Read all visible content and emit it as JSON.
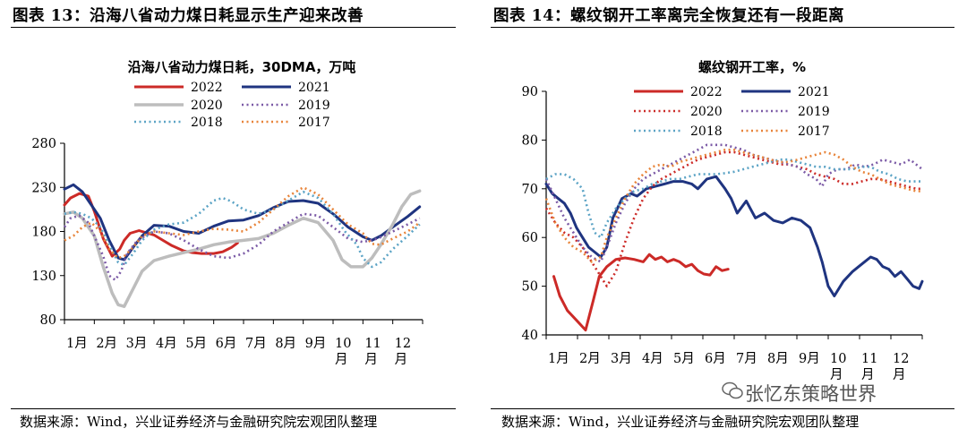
{
  "figure_left": {
    "label": "图表 13：沿海八省动力煤日耗显示生产迎来改善",
    "source": "数据来源：Wind，兴业证券经济与金融研究院宏观团队整理"
  },
  "figure_right": {
    "label": "图表 14：螺纹钢开工率离完全恢复还有一段距离",
    "source": "数据来源：Wind，兴业证券经济与金融研究院宏观团队整理"
  },
  "watermark": "张忆东策略世界",
  "chart_data": [
    {
      "type": "line",
      "title": "沿海八省动力煤日耗，30DMA，万吨",
      "x_ticks": [
        "1月",
        "2月",
        "3月",
        "4月",
        "5月",
        "6月",
        "7月",
        "8月",
        "9月",
        "10\n月",
        "11\n月",
        "12\n月"
      ],
      "ylim": [
        80,
        280
      ],
      "y_ticks": [
        80,
        130,
        180,
        230,
        280
      ],
      "xlim": [
        1,
        13
      ],
      "series": [
        {
          "name": "2022",
          "color": "#cc2a27",
          "dash": "solid",
          "width": 3,
          "x": [
            1.0,
            1.2,
            1.5,
            1.8,
            2.0,
            2.3,
            2.6,
            2.85,
            3.0,
            3.2,
            3.5,
            3.8,
            4.0,
            4.3,
            4.6,
            5.0,
            5.3,
            5.6,
            6.0,
            6.3,
            6.6,
            6.8
          ],
          "y": [
            210,
            218,
            223,
            220,
            203,
            172,
            152,
            160,
            170,
            178,
            181,
            178,
            176,
            170,
            164,
            158,
            156,
            155,
            155,
            157,
            162,
            167
          ]
        },
        {
          "name": "2021",
          "color": "#1f3480",
          "dash": "solid",
          "width": 3,
          "x": [
            1.0,
            1.3,
            1.6,
            1.9,
            2.2,
            2.5,
            2.8,
            3.0,
            3.3,
            3.6,
            4.0,
            4.5,
            5.0,
            5.5,
            6.0,
            6.5,
            7.0,
            7.5,
            8.0,
            8.5,
            9.0,
            9.5,
            10.0,
            10.5,
            11.0,
            11.3,
            11.6,
            12.0,
            12.5,
            12.9
          ],
          "y": [
            228,
            233,
            225,
            210,
            195,
            170,
            150,
            148,
            162,
            175,
            187,
            186,
            180,
            178,
            186,
            192,
            193,
            198,
            207,
            214,
            215,
            212,
            200,
            185,
            174,
            170,
            175,
            185,
            197,
            208
          ]
        },
        {
          "name": "2020",
          "color": "#bdbdbd",
          "dash": "solid",
          "width": 3.5,
          "x": [
            1.0,
            1.3,
            1.6,
            2.0,
            2.3,
            2.6,
            2.8,
            3.0,
            3.3,
            3.6,
            4.0,
            4.5,
            5.0,
            5.5,
            6.0,
            6.5,
            7.0,
            7.5,
            8.0,
            8.5,
            9.0,
            9.5,
            10.0,
            10.3,
            10.6,
            11.0,
            11.3,
            11.6,
            12.0,
            12.3,
            12.6,
            12.9
          ],
          "y": [
            200,
            202,
            195,
            175,
            140,
            110,
            97,
            95,
            115,
            135,
            147,
            152,
            156,
            160,
            165,
            168,
            170,
            172,
            178,
            187,
            195,
            190,
            170,
            148,
            140,
            140,
            150,
            165,
            188,
            208,
            222,
            226
          ]
        },
        {
          "name": "2019",
          "color": "#7b5aa6",
          "dash": "2,3.5",
          "width": 2.6,
          "x": [
            1.0,
            1.2,
            1.5,
            1.8,
            2.0,
            2.3,
            2.5,
            2.7,
            2.9,
            3.1,
            3.4,
            3.7,
            4.0,
            4.5,
            5.0,
            5.5,
            6.0,
            6.5,
            7.0,
            7.5,
            8.0,
            8.5,
            9.0,
            9.5,
            10.0,
            10.5,
            11.0,
            11.5,
            12.0,
            12.5,
            12.9
          ],
          "y": [
            185,
            195,
            198,
            190,
            175,
            152,
            130,
            125,
            135,
            155,
            168,
            175,
            180,
            178,
            170,
            160,
            152,
            150,
            155,
            165,
            180,
            190,
            200,
            198,
            185,
            172,
            168,
            172,
            180,
            188,
            195
          ]
        },
        {
          "name": "2018",
          "color": "#5ba3c5",
          "dash": "2,3.5",
          "width": 2.6,
          "x": [
            1.0,
            1.3,
            1.6,
            1.9,
            2.2,
            2.5,
            2.8,
            3.0,
            3.3,
            3.6,
            4.0,
            4.5,
            5.0,
            5.5,
            6.0,
            6.3,
            6.6,
            7.0,
            7.5,
            8.0,
            8.5,
            9.0,
            9.5,
            10.0,
            10.4,
            10.8,
            11.0,
            11.3,
            11.6,
            12.0,
            12.5,
            12.9
          ],
          "y": [
            200,
            202,
            200,
            195,
            185,
            165,
            145,
            142,
            155,
            170,
            182,
            188,
            190,
            200,
            215,
            218,
            214,
            205,
            200,
            205,
            215,
            225,
            218,
            200,
            180,
            165,
            150,
            140,
            145,
            160,
            175,
            188
          ]
        },
        {
          "name": "2017",
          "color": "#e8843a",
          "dash": "2,3.5",
          "width": 2.6,
          "x": [
            1.0,
            1.3,
            1.6,
            1.9,
            2.2,
            2.5,
            2.8,
            3.0,
            3.3,
            3.6,
            4.0,
            4.5,
            5.0,
            5.5,
            6.0,
            6.5,
            7.0,
            7.5,
            8.0,
            8.5,
            9.0,
            9.5,
            10.0,
            10.5,
            11.0,
            11.3,
            11.6,
            12.0,
            12.5,
            12.9
          ],
          "y": [
            170,
            175,
            185,
            190,
            180,
            160,
            150,
            152,
            162,
            175,
            180,
            178,
            176,
            180,
            183,
            182,
            180,
            190,
            205,
            220,
            230,
            222,
            205,
            188,
            178,
            166,
            165,
            172,
            180,
            190
          ]
        }
      ]
    },
    {
      "type": "line",
      "title": "螺纹钢开工率，%",
      "x_ticks": [
        "1月",
        "2月",
        "3月",
        "4月",
        "5月",
        "6月",
        "7月",
        "8月",
        "9月",
        "10\n月",
        "11\n月",
        "12\n月"
      ],
      "ylim": [
        40,
        90
      ],
      "y_ticks": [
        40,
        50,
        60,
        70,
        80,
        90
      ],
      "xlim": [
        1,
        13.4
      ],
      "series": [
        {
          "name": "2022",
          "color": "#cc2a27",
          "dash": "solid",
          "width": 3,
          "x": [
            1.25,
            1.45,
            1.7,
            2.0,
            2.3,
            2.55,
            2.75,
            3.0,
            3.3,
            3.6,
            3.9,
            4.2,
            4.4,
            4.6,
            4.8,
            5.0,
            5.2,
            5.4,
            5.6,
            5.8,
            6.0,
            6.2,
            6.4,
            6.6,
            6.8,
            7.0
          ],
          "y": [
            52,
            48,
            45,
            43,
            41,
            47,
            52,
            54,
            55.5,
            55.8,
            55.5,
            55,
            56.5,
            55.5,
            56,
            55,
            55.5,
            55,
            54,
            54.5,
            53.2,
            52.5,
            52.3,
            54,
            53.2,
            53.5
          ]
        },
        {
          "name": "2021",
          "color": "#1f3480",
          "dash": "solid",
          "width": 3,
          "x": [
            1.0,
            1.2,
            1.4,
            1.6,
            1.8,
            2.0,
            2.2,
            2.4,
            2.6,
            2.8,
            3.0,
            3.2,
            3.5,
            3.8,
            4.0,
            4.3,
            4.6,
            4.9,
            5.2,
            5.5,
            5.8,
            6.0,
            6.3,
            6.6,
            6.9,
            7.1,
            7.3,
            7.6,
            7.9,
            8.2,
            8.5,
            8.8,
            9.1,
            9.4,
            9.7,
            9.95,
            10.1,
            10.3,
            10.5,
            10.8,
            11.1,
            11.3,
            11.5,
            11.7,
            11.9,
            12.1,
            12.3,
            12.5,
            12.7,
            12.9,
            13.1,
            13.3,
            13.4
          ],
          "y": [
            71,
            69,
            68,
            67,
            65,
            62,
            60,
            58,
            57,
            56,
            58,
            64,
            68,
            69,
            68.5,
            70,
            70.5,
            71,
            71.5,
            71.5,
            71,
            70,
            72,
            72.5,
            70,
            68,
            65,
            67.5,
            64,
            65,
            63.5,
            63,
            64,
            63.5,
            62,
            58,
            55,
            50,
            48,
            51,
            53,
            54,
            55,
            56,
            55.5,
            54,
            53.5,
            52,
            53,
            51.5,
            50,
            49.5,
            51
          ]
        },
        {
          "name": "2020",
          "color": "#cc2a27",
          "dash": "2,3.5",
          "width": 2.6,
          "x": [
            1.0,
            1.3,
            1.6,
            1.9,
            2.2,
            2.5,
            2.8,
            3.0,
            3.3,
            3.6,
            3.9,
            4.2,
            4.5,
            4.8,
            5.1,
            5.4,
            5.7,
            6.0,
            6.3,
            6.6,
            6.9,
            7.2,
            7.5,
            7.8,
            8.1,
            8.4,
            8.7,
            9.0,
            9.3,
            9.6,
            9.9,
            10.2,
            10.5,
            10.8,
            11.1,
            11.4,
            11.7,
            12.0,
            12.3,
            12.6,
            12.9,
            13.2,
            13.4
          ],
          "y": [
            66,
            63,
            61,
            60,
            58,
            55,
            52,
            50,
            53,
            59,
            64,
            68,
            70.5,
            72,
            73,
            74,
            75,
            76,
            76.5,
            77,
            77.5,
            77.5,
            77,
            76.5,
            76,
            75.5,
            75,
            75,
            74.5,
            74,
            73,
            72.5,
            72,
            71,
            71,
            71.5,
            72,
            72,
            71.5,
            71,
            70.5,
            70,
            70
          ]
        },
        {
          "name": "2019",
          "color": "#7b5aa6",
          "dash": "2,3.5",
          "width": 2.6,
          "x": [
            1.0,
            1.3,
            1.6,
            1.9,
            2.2,
            2.5,
            2.8,
            3.0,
            3.3,
            3.6,
            3.9,
            4.2,
            4.5,
            4.8,
            5.1,
            5.4,
            5.7,
            6.0,
            6.3,
            6.6,
            6.9,
            7.2,
            7.5,
            7.8,
            8.1,
            8.4,
            8.7,
            9.0,
            9.3,
            9.6,
            9.9,
            10.1,
            10.3,
            10.6,
            10.9,
            11.2,
            11.5,
            11.8,
            12.1,
            12.4,
            12.7,
            13.0,
            13.2,
            13.4
          ],
          "y": [
            72,
            68,
            64,
            61,
            58,
            56,
            55,
            58,
            63,
            67,
            70,
            72,
            73,
            74,
            75,
            76,
            77,
            78,
            79,
            79,
            79,
            78.5,
            78,
            77,
            76.5,
            76,
            75.5,
            75,
            74.5,
            73,
            72,
            70.5,
            73,
            74,
            74,
            75,
            74.5,
            75,
            76,
            75.5,
            75,
            76,
            75,
            74
          ]
        },
        {
          "name": "2018",
          "color": "#5ba3c5",
          "dash": "2,3.5",
          "width": 2.6,
          "x": [
            1.0,
            1.3,
            1.6,
            1.9,
            2.2,
            2.4,
            2.6,
            2.8,
            3.0,
            3.3,
            3.6,
            3.9,
            4.2,
            4.5,
            4.8,
            5.1,
            5.4,
            5.7,
            6.0,
            6.3,
            6.6,
            6.9,
            7.2,
            7.5,
            7.8,
            8.1,
            8.4,
            8.7,
            9.0,
            9.3,
            9.6,
            9.9,
            10.2,
            10.5,
            10.8,
            11.1,
            11.4,
            11.7,
            12.0,
            12.3,
            12.6,
            12.9,
            13.2,
            13.4
          ],
          "y": [
            72,
            73,
            73,
            72,
            70,
            65,
            61,
            60,
            63,
            66,
            68,
            69.5,
            70,
            71,
            71.5,
            72,
            72,
            72.5,
            73,
            73,
            73,
            73.2,
            73.5,
            74,
            74.5,
            75,
            75.5,
            76,
            76,
            75.5,
            75,
            74.5,
            74.5,
            74,
            74,
            74,
            74.5,
            74.5,
            73.5,
            73,
            72,
            71.5,
            71.5,
            71.5
          ]
        },
        {
          "name": "2017",
          "color": "#e8843a",
          "dash": "2,3.5",
          "width": 2.6,
          "x": [
            1.0,
            1.3,
            1.6,
            1.9,
            2.2,
            2.5,
            2.8,
            3.0,
            3.3,
            3.6,
            3.9,
            4.2,
            4.5,
            4.8,
            5.1,
            5.4,
            5.7,
            6.0,
            6.3,
            6.6,
            6.9,
            7.2,
            7.5,
            7.8,
            8.1,
            8.4,
            8.7,
            9.0,
            9.3,
            9.6,
            9.9,
            10.2,
            10.5,
            10.8,
            11.1,
            11.4,
            11.7,
            12.0,
            12.3,
            12.6,
            12.9,
            13.2,
            13.4
          ],
          "y": [
            68,
            63,
            60,
            58,
            57,
            55,
            56,
            60,
            64,
            68,
            71,
            73,
            74.5,
            75,
            74.5,
            75.5,
            76,
            76.5,
            77,
            77.5,
            78,
            78,
            77.5,
            77,
            76.5,
            76,
            75.5,
            75.5,
            76,
            76.5,
            77,
            77.5,
            77,
            76,
            74.5,
            73.5,
            73,
            72,
            71,
            70.5,
            70,
            69.5,
            69.5
          ]
        }
      ]
    }
  ]
}
